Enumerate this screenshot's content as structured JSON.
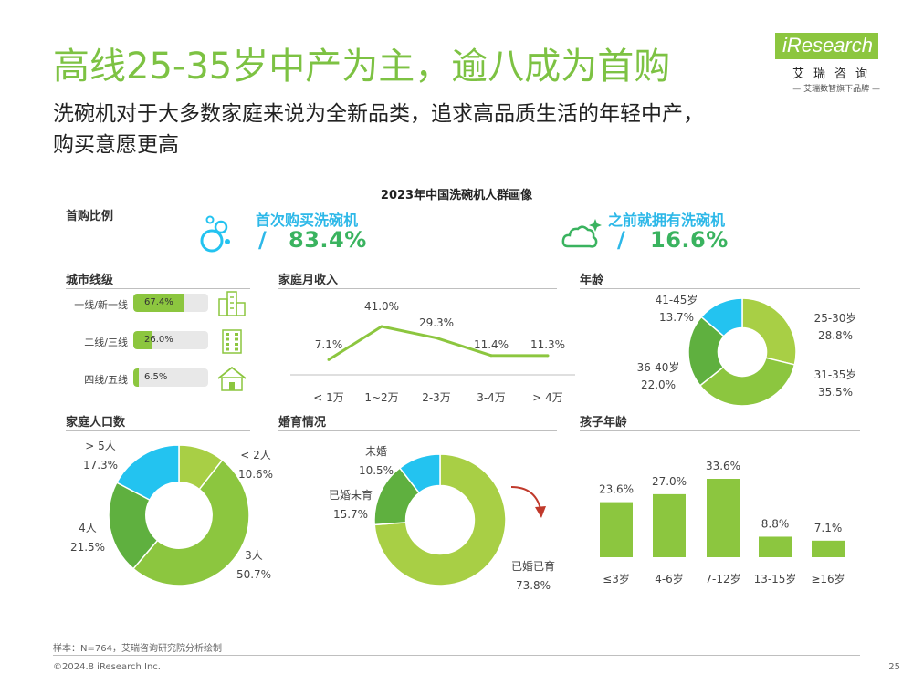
{
  "header": {
    "title": "高线25-35岁中产为主，逾八成为首购",
    "subtitle_line1": "洗碗机对于大多数家庭来说为全新品类，追求高品质生活的年轻中产，",
    "subtitle_line2": "购买意愿更高"
  },
  "logo": {
    "word": "iResearch",
    "cn": "艾瑞咨询",
    "tagline": "— 艾瑞数智旗下品牌 —"
  },
  "colors": {
    "green": "#8cc63f",
    "dark_green": "#5fb03f",
    "cyan": "#23c3f0",
    "title_green": "#7dc243",
    "value_green": "#3ab35f",
    "blue_label": "#2db8e8"
  },
  "chart_data": [
    {
      "type": "table",
      "title": "首购比例",
      "items": [
        {
          "label": "首次购买洗碗机",
          "value": 83.4,
          "display": "83.4%"
        },
        {
          "label": "之前就拥有洗碗机",
          "value": 16.6,
          "display": "16.6%"
        }
      ]
    },
    {
      "type": "bar",
      "orientation": "horizontal",
      "title": "城市线级",
      "categories": [
        "一线/新一线",
        "二线/三线",
        "四线/五线"
      ],
      "values": [
        67.4,
        26.0,
        6.5
      ],
      "labels": [
        "67.4%",
        "26.0%",
        "6.5%"
      ],
      "xlim": [
        0,
        100
      ]
    },
    {
      "type": "line",
      "title": "家庭月收入",
      "categories": [
        "< 1万",
        "1~2万",
        "2-3万",
        "3-4万",
        "> 4万"
      ],
      "values": [
        7.1,
        41.0,
        29.3,
        11.4,
        11.3
      ],
      "labels": [
        "7.1%",
        "41.0%",
        "29.3%",
        "11.4%",
        "11.3%"
      ],
      "ylim": [
        0,
        45
      ]
    },
    {
      "type": "pie",
      "title": "年龄",
      "slices": [
        {
          "label": "25-30岁",
          "value": 28.8,
          "pct": "28.8%",
          "color": "#a8cf45"
        },
        {
          "label": "31-35岁",
          "value": 35.5,
          "pct": "35.5%",
          "color": "#8cc63f"
        },
        {
          "label": "36-40岁",
          "value": 22.0,
          "pct": "22.0%",
          "color": "#5fb03f"
        },
        {
          "label": "41-45岁",
          "value": 13.7,
          "pct": "13.7%",
          "color": "#23c3f0"
        }
      ]
    },
    {
      "type": "pie",
      "title": "家庭人口数",
      "slices": [
        {
          "label": "< 2人",
          "value": 10.6,
          "pct": "10.6%",
          "color": "#a8cf45"
        },
        {
          "label": "3人",
          "value": 50.7,
          "pct": "50.7%",
          "color": "#8cc63f"
        },
        {
          "label": "4人",
          "value": 21.5,
          "pct": "21.5%",
          "color": "#5fb03f"
        },
        {
          "label": "> 5人",
          "value": 17.3,
          "pct": "17.3%",
          "color": "#23c3f0"
        }
      ]
    },
    {
      "type": "pie",
      "title": "婚育情况",
      "slices": [
        {
          "label": "已婚已育",
          "value": 73.8,
          "pct": "73.8%",
          "color": "#a8cf45"
        },
        {
          "label": "已婚未育",
          "value": 15.7,
          "pct": "15.7%",
          "color": "#5fb03f"
        },
        {
          "label": "未婚",
          "value": 10.5,
          "pct": "10.5%",
          "color": "#23c3f0"
        }
      ]
    },
    {
      "type": "bar",
      "title": "孩子年龄",
      "categories": [
        "≤3岁",
        "4-6岁",
        "7-12岁",
        "13-15岁",
        "≥16岁"
      ],
      "values": [
        23.6,
        27.0,
        33.6,
        8.8,
        7.1
      ],
      "labels": [
        "23.6%",
        "27.0%",
        "33.6%",
        "8.8%",
        "7.1%"
      ],
      "ylim": [
        0,
        36
      ]
    }
  ],
  "chart_title": "2023年中国洗碗机人群画像",
  "footer": {
    "source": "样本：N=764，艾瑞咨询研究院分析绘制",
    "copyright": "©2024.8 iResearch Inc.",
    "page": "25"
  }
}
